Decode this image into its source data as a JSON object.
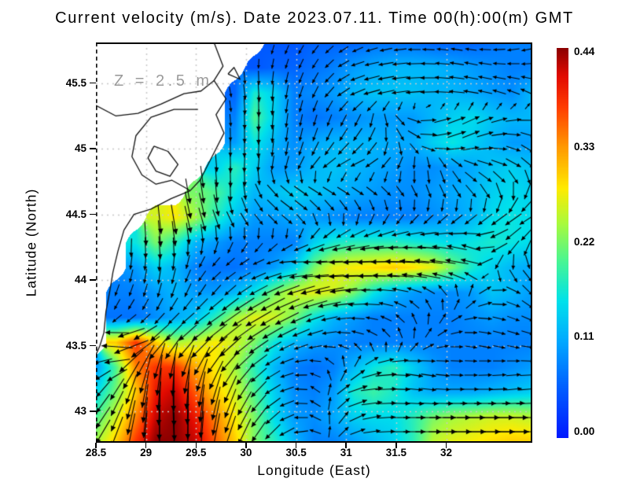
{
  "chart_data": {
    "type": "heatmap",
    "subtype": "vector_field",
    "title": "Current velocity (m/s). Date 2023.07.11. Time 00(h):00(m) GMT",
    "annotation": "Z = 2.5 m",
    "xlabel": "Longitude (East)",
    "ylabel": "Latitude (North)",
    "units": "m/s",
    "grid_on": true,
    "x_range": [
      28.5,
      32.86
    ],
    "y_range": [
      42.76,
      45.81
    ],
    "x_ticks": [
      28.5,
      29,
      29.5,
      30,
      30.5,
      31,
      31.5,
      32
    ],
    "x_tick_labels": [
      "28.5",
      "29",
      "29.5",
      "30",
      "30.5",
      "31",
      "31.5",
      "32"
    ],
    "y_ticks": [
      43,
      43.5,
      44,
      44.5,
      45,
      45.5
    ],
    "y_tick_labels": [
      "43",
      "43.5",
      "44",
      "44.5",
      "45",
      "45.5"
    ],
    "colorbar": {
      "position": "right",
      "min": 0,
      "max": 0.44,
      "ticks": [
        0,
        0.11,
        0.22,
        0.33,
        0.44
      ],
      "tick_labels": [
        "0.00",
        "0.11",
        "0.22",
        "0.33",
        "0.44"
      ]
    },
    "colormap_stops": [
      [
        0.0,
        0,
        25,
        255
      ],
      [
        0.12,
        0,
        90,
        255
      ],
      [
        0.25,
        0,
        170,
        255
      ],
      [
        0.35,
        0,
        225,
        235
      ],
      [
        0.45,
        70,
        245,
        150
      ],
      [
        0.55,
        170,
        250,
        60
      ],
      [
        0.64,
        255,
        235,
        0
      ],
      [
        0.75,
        255,
        150,
        0
      ],
      [
        0.85,
        255,
        60,
        0
      ],
      [
        0.93,
        225,
        10,
        0
      ],
      [
        1.0,
        140,
        0,
        0
      ]
    ],
    "field": {
      "nx": 23,
      "ny": 17,
      "row_order": "north_to_south",
      "land_value": null,
      "magnitude": [
        [
          null,
          null,
          null,
          null,
          null,
          null,
          null,
          null,
          null,
          0.05,
          0.05,
          0.06,
          0.06,
          0.06,
          0.07,
          0.07,
          0.07,
          0.06,
          0.06,
          0.06,
          0.07,
          0.08,
          0.08
        ],
        [
          null,
          null,
          null,
          null,
          null,
          null,
          null,
          null,
          0.05,
          0.06,
          0.06,
          0.07,
          0.08,
          0.1,
          0.11,
          0.12,
          0.12,
          0.12,
          0.11,
          0.1,
          0.09,
          0.08,
          0.08
        ],
        [
          null,
          null,
          null,
          null,
          null,
          null,
          null,
          0.06,
          0.17,
          0.14,
          0.08,
          0.09,
          0.1,
          0.12,
          0.13,
          0.13,
          0.13,
          0.12,
          0.12,
          0.11,
          0.1,
          0.09,
          0.12
        ],
        [
          null,
          null,
          null,
          null,
          null,
          null,
          null,
          0.08,
          0.2,
          0.14,
          0.08,
          0.07,
          0.08,
          0.09,
          0.1,
          0.1,
          0.1,
          0.12,
          0.14,
          0.15,
          0.13,
          0.12,
          0.12
        ],
        [
          null,
          null,
          null,
          null,
          null,
          null,
          null,
          0.1,
          0.16,
          0.12,
          0.09,
          0.11,
          0.12,
          0.12,
          0.12,
          0.11,
          0.11,
          0.14,
          0.16,
          0.14,
          0.12,
          0.1,
          0.1
        ],
        [
          null,
          null,
          null,
          null,
          null,
          null,
          0.14,
          0.18,
          0.14,
          0.1,
          0.1,
          0.12,
          0.13,
          0.12,
          0.11,
          0.1,
          0.09,
          0.09,
          0.1,
          0.11,
          0.13,
          0.14,
          0.13
        ],
        [
          null,
          null,
          null,
          null,
          null,
          0.22,
          0.2,
          0.16,
          0.12,
          0.13,
          0.14,
          0.13,
          0.12,
          0.11,
          0.1,
          0.09,
          0.09,
          0.1,
          0.11,
          0.12,
          0.14,
          0.15,
          0.14
        ],
        [
          null,
          null,
          null,
          0.26,
          0.28,
          0.24,
          0.18,
          0.13,
          0.1,
          0.1,
          0.11,
          0.1,
          0.09,
          0.08,
          0.08,
          0.08,
          0.08,
          0.09,
          0.1,
          0.12,
          0.15,
          0.16,
          0.15
        ],
        [
          null,
          null,
          0.16,
          0.22,
          0.18,
          0.12,
          0.1,
          0.08,
          0.08,
          0.08,
          0.08,
          0.14,
          0.17,
          0.18,
          0.18,
          0.18,
          0.17,
          0.16,
          0.15,
          0.16,
          0.17,
          0.16,
          0.15
        ],
        [
          null,
          null,
          0.1,
          0.14,
          0.12,
          0.08,
          0.07,
          0.07,
          0.08,
          0.1,
          0.14,
          0.22,
          0.27,
          0.28,
          0.29,
          0.3,
          0.29,
          0.27,
          0.22,
          0.17,
          0.14,
          0.12,
          0.11
        ],
        [
          null,
          0.08,
          0.08,
          0.1,
          0.12,
          0.1,
          0.1,
          0.12,
          0.16,
          0.22,
          0.26,
          0.27,
          0.26,
          0.22,
          0.16,
          0.12,
          0.1,
          0.09,
          0.09,
          0.1,
          0.13,
          0.12,
          0.1
        ],
        [
          null,
          0.07,
          0.07,
          0.09,
          0.11,
          0.13,
          0.18,
          0.24,
          0.27,
          0.26,
          0.22,
          0.16,
          0.12,
          0.1,
          0.08,
          0.08,
          0.08,
          0.08,
          0.08,
          0.09,
          0.1,
          0.09,
          0.09
        ],
        [
          null,
          0.3,
          0.38,
          0.3,
          0.24,
          0.26,
          0.28,
          0.26,
          0.22,
          0.16,
          0.12,
          0.1,
          0.09,
          0.08,
          0.08,
          0.08,
          0.08,
          0.08,
          0.08,
          0.08,
          0.08,
          0.08,
          0.08
        ],
        [
          0.1,
          0.2,
          0.34,
          0.38,
          0.38,
          0.32,
          0.28,
          0.24,
          0.18,
          0.12,
          0.08,
          0.07,
          0.08,
          0.12,
          0.16,
          0.18,
          0.14,
          0.1,
          0.08,
          0.08,
          0.08,
          0.09,
          0.1
        ],
        [
          0.15,
          0.22,
          0.3,
          0.4,
          0.42,
          0.36,
          0.3,
          0.26,
          0.2,
          0.14,
          0.09,
          0.08,
          0.1,
          0.17,
          0.19,
          0.17,
          0.13,
          0.11,
          0.11,
          0.11,
          0.12,
          0.13,
          0.14
        ],
        [
          0.2,
          0.26,
          0.34,
          0.42,
          0.44,
          0.4,
          0.34,
          0.28,
          0.22,
          0.15,
          0.1,
          0.09,
          0.11,
          0.14,
          0.15,
          0.15,
          0.18,
          0.22,
          0.24,
          0.25,
          0.26,
          0.26,
          0.25
        ],
        [
          0.24,
          0.3,
          0.38,
          0.44,
          0.44,
          0.42,
          0.36,
          0.3,
          0.22,
          0.18,
          0.12,
          0.08,
          0.08,
          0.1,
          0.12,
          0.14,
          0.18,
          0.25,
          0.27,
          0.28,
          0.29,
          0.3,
          0.3
        ]
      ],
      "direction_deg": [
        [
          0,
          0,
          0,
          0,
          0,
          0,
          0,
          0,
          0,
          -110,
          -120,
          -130,
          -140,
          -150,
          -160,
          -170,
          180,
          175,
          170,
          175,
          -175,
          -170,
          -165
        ],
        [
          0,
          0,
          0,
          0,
          0,
          0,
          0,
          0,
          -90,
          -100,
          -110,
          -120,
          -140,
          -160,
          -168,
          -172,
          -178,
          178,
          172,
          168,
          172,
          178,
          -178
        ],
        [
          0,
          0,
          0,
          0,
          0,
          0,
          0,
          -80,
          -85,
          -95,
          -105,
          -115,
          -135,
          -155,
          -165,
          -170,
          -175,
          180,
          175,
          170,
          165,
          160,
          155
        ],
        [
          0,
          0,
          0,
          0,
          0,
          0,
          0,
          -85,
          -90,
          -95,
          -100,
          -105,
          -110,
          -120,
          -100,
          -60,
          -20,
          10,
          20,
          25,
          20,
          10,
          0
        ],
        [
          0,
          0,
          0,
          0,
          0,
          0,
          0,
          -90,
          -90,
          -95,
          -100,
          -110,
          -120,
          -130,
          -120,
          -80,
          -40,
          0,
          15,
          20,
          10,
          -10,
          -30
        ],
        [
          0,
          0,
          0,
          0,
          0,
          0,
          -85,
          -90,
          -95,
          -100,
          -110,
          -130,
          -150,
          -160,
          -150,
          -130,
          -110,
          -90,
          -60,
          -30,
          -20,
          -30,
          -45
        ],
        [
          0,
          0,
          0,
          0,
          0,
          -80,
          -85,
          -90,
          -70,
          -45,
          -35,
          -30,
          -30,
          -30,
          -35,
          -45,
          -60,
          -70,
          -60,
          -50,
          -60,
          -90,
          -120
        ],
        [
          0,
          0,
          0,
          -85,
          -80,
          -75,
          -70,
          -60,
          -50,
          -40,
          -35,
          -60,
          -75,
          -90,
          -105,
          -115,
          -125,
          -130,
          -135,
          -135,
          -140,
          -145,
          -150
        ],
        [
          0,
          0,
          -90,
          -85,
          -85,
          -90,
          -100,
          -110,
          -120,
          -130,
          -140,
          -150,
          -160,
          -165,
          -170,
          -175,
          180,
          175,
          170,
          160,
          -170,
          -140,
          -120
        ],
        [
          0,
          0,
          -100,
          -95,
          -100,
          -120,
          -140,
          -150,
          -160,
          -170,
          175,
          178,
          180,
          180,
          180,
          178,
          176,
          174,
          172,
          168,
          -120,
          -80,
          -50
        ],
        [
          0,
          -110,
          -110,
          -105,
          -110,
          -120,
          -130,
          -140,
          -150,
          -155,
          -160,
          -165,
          -170,
          -175,
          180,
          170,
          160,
          140,
          100,
          60,
          20,
          -20,
          -50
        ],
        [
          0,
          -130,
          -135,
          -130,
          -135,
          -140,
          -145,
          -145,
          -150,
          -150,
          -155,
          -160,
          -170,
          180,
          170,
          150,
          120,
          80,
          40,
          10,
          -10,
          -20,
          -25
        ],
        [
          0,
          170,
          -160,
          -140,
          -135,
          -140,
          -140,
          -140,
          -145,
          -150,
          -155,
          -165,
          180,
          160,
          140,
          110,
          70,
          30,
          5,
          -10,
          -15,
          -15,
          -10
        ],
        [
          -150,
          -170,
          -120,
          -100,
          -95,
          -110,
          -120,
          -130,
          -140,
          -150,
          -170,
          170,
          120,
          60,
          20,
          0,
          -10,
          -10,
          -5,
          0,
          5,
          5,
          0
        ],
        [
          -135,
          -120,
          -105,
          -95,
          -90,
          -95,
          -105,
          -115,
          -130,
          -150,
          -170,
          150,
          60,
          20,
          5,
          0,
          -5,
          -5,
          0,
          0,
          0,
          5,
          5
        ],
        [
          -130,
          -115,
          -100,
          -92,
          -88,
          -92,
          -100,
          -112,
          -125,
          -140,
          -170,
          160,
          80,
          30,
          10,
          0,
          0,
          0,
          0,
          0,
          0,
          0,
          0
        ],
        [
          -125,
          -110,
          -98,
          -90,
          -88,
          -92,
          -100,
          -110,
          -120,
          -135,
          -160,
          170,
          60,
          20,
          5,
          0,
          0,
          0,
          0,
          0,
          0,
          0,
          0
        ]
      ]
    },
    "coastlines": [
      [
        [
          29.68,
          45.81
        ],
        [
          29.77,
          45.63
        ],
        [
          29.68,
          45.52
        ],
        [
          29.8,
          45.38
        ],
        [
          29.7,
          45.26
        ],
        [
          29.78,
          45.12
        ],
        [
          29.7,
          45.0
        ],
        [
          29.62,
          44.88
        ],
        [
          29.54,
          44.76
        ],
        [
          29.44,
          44.68
        ],
        [
          29.25,
          44.62
        ],
        [
          29.05,
          44.54
        ],
        [
          28.88,
          44.5
        ],
        [
          28.78,
          44.38
        ],
        [
          28.72,
          44.22
        ],
        [
          28.67,
          44.06
        ],
        [
          28.64,
          43.92
        ],
        [
          28.6,
          43.76
        ],
        [
          28.58,
          43.6
        ],
        [
          28.54,
          43.5
        ],
        [
          28.5,
          43.43
        ]
      ],
      [
        [
          28.5,
          45.33
        ],
        [
          28.7,
          45.25
        ],
        [
          28.92,
          45.27
        ],
        [
          29.15,
          45.34
        ],
        [
          29.38,
          45.42
        ],
        [
          29.55,
          45.44
        ],
        [
          29.68,
          45.52
        ]
      ],
      [
        [
          29.52,
          45.3
        ],
        [
          29.28,
          45.3
        ],
        [
          29.05,
          45.24
        ],
        [
          28.9,
          45.1
        ],
        [
          28.86,
          44.94
        ],
        [
          28.96,
          44.8
        ],
        [
          29.1,
          44.73
        ],
        [
          29.26,
          44.76
        ],
        [
          29.4,
          44.7
        ],
        [
          29.44,
          44.68
        ]
      ],
      [
        [
          29.08,
          45.02
        ],
        [
          29.22,
          44.98
        ],
        [
          29.32,
          44.88
        ],
        [
          29.24,
          44.79
        ],
        [
          29.1,
          44.83
        ],
        [
          29.02,
          44.93
        ],
        [
          29.08,
          45.02
        ]
      ],
      [
        [
          29.82,
          45.57
        ],
        [
          29.94,
          45.53
        ],
        [
          29.88,
          45.62
        ],
        [
          29.82,
          45.57
        ]
      ]
    ]
  }
}
